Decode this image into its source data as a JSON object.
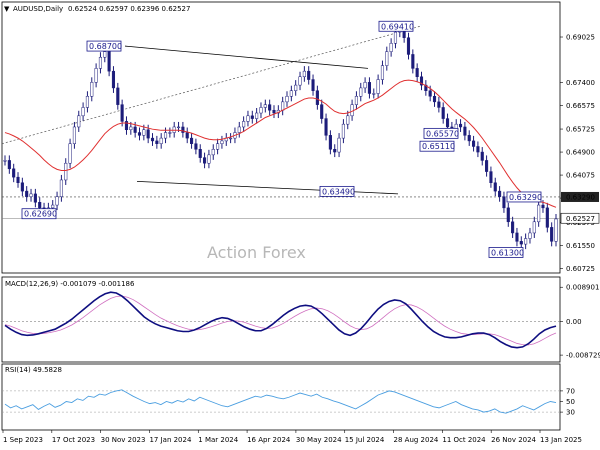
{
  "chart_data": {
    "type": "candlestick",
    "symbol_label": "AUDUSD,Daily",
    "ohlc_label": "0.62524 0.62597 0.62396 0.62527",
    "watermark": "Action Forex",
    "x_ticks": [
      "1 Sep 2023",
      "17 Oct 2023",
      "30 Nov 2023",
      "17 Jan 2024",
      "1 Mar 2024",
      "16 Apr 2024",
      "30 May 2024",
      "15 Jul 2024",
      "28 Aug 2024",
      "11 Oct 2024",
      "26 Nov 2024",
      "13 Jan 2025"
    ],
    "price": {
      "ylim": [
        0.606,
        0.6985
      ],
      "y_ticks": [
        "0.69025",
        "0.67400",
        "0.66575",
        "0.65725",
        "0.64900",
        "0.64075",
        "0.63250",
        "0.62375",
        "0.61550",
        "0.60725"
      ],
      "current_price": "0.62527",
      "level_price": "0.63290",
      "annotations": [
        "0.68700",
        "0.69410",
        "0.65570",
        "0.65110",
        "0.63490",
        "0.63290",
        "0.62690",
        "0.61300"
      ],
      "close": [
        0.646,
        0.643,
        0.64,
        0.638,
        0.635,
        0.633,
        0.634,
        0.631,
        0.629,
        0.628,
        0.629,
        0.63,
        0.633,
        0.639,
        0.645,
        0.652,
        0.658,
        0.662,
        0.665,
        0.669,
        0.674,
        0.679,
        0.683,
        0.685,
        0.678,
        0.672,
        0.666,
        0.66,
        0.657,
        0.658,
        0.656,
        0.655,
        0.657,
        0.654,
        0.653,
        0.652,
        0.654,
        0.656,
        0.656,
        0.658,
        0.658,
        0.656,
        0.654,
        0.652,
        0.65,
        0.647,
        0.645,
        0.648,
        0.65,
        0.652,
        0.653,
        0.654,
        0.654,
        0.656,
        0.658,
        0.66,
        0.662,
        0.661,
        0.663,
        0.665,
        0.666,
        0.664,
        0.663,
        0.664,
        0.667,
        0.669,
        0.671,
        0.673,
        0.676,
        0.678,
        0.675,
        0.671,
        0.666,
        0.661,
        0.655,
        0.65,
        0.649,
        0.654,
        0.659,
        0.662,
        0.666,
        0.669,
        0.672,
        0.674,
        0.67,
        0.67,
        0.675,
        0.68,
        0.685,
        0.688,
        0.692,
        0.693,
        0.69,
        0.684,
        0.679,
        0.676,
        0.673,
        0.671,
        0.669,
        0.667,
        0.665,
        0.661,
        0.658,
        0.656,
        0.659,
        0.658,
        0.655,
        0.653,
        0.651,
        0.649,
        0.646,
        0.642,
        0.638,
        0.635,
        0.633,
        0.629,
        0.624,
        0.62,
        0.617,
        0.616,
        0.618,
        0.62,
        0.624,
        0.63,
        0.629,
        0.622,
        0.617,
        0.625
      ],
      "ma": [
        0.656,
        0.6555,
        0.6548,
        0.654,
        0.653,
        0.6518,
        0.6505,
        0.6492,
        0.6478,
        0.6462,
        0.6448,
        0.6436,
        0.6428,
        0.6424,
        0.6424,
        0.6428,
        0.6436,
        0.6448,
        0.6462,
        0.6478,
        0.6496,
        0.6516,
        0.6536,
        0.6556,
        0.657,
        0.6582,
        0.659,
        0.6594,
        0.6594,
        0.6592,
        0.6588,
        0.6584,
        0.658,
        0.6576,
        0.6572,
        0.657,
        0.6568,
        0.6568,
        0.6568,
        0.6568,
        0.6568,
        0.6566,
        0.6562,
        0.6558,
        0.6552,
        0.6546,
        0.654,
        0.6536,
        0.6534,
        0.6534,
        0.6536,
        0.654,
        0.6544,
        0.655,
        0.6556,
        0.6564,
        0.6574,
        0.6584,
        0.6594,
        0.6604,
        0.6614,
        0.662,
        0.6626,
        0.6632,
        0.664,
        0.6648,
        0.6656,
        0.6664,
        0.6672,
        0.668,
        0.6684,
        0.6684,
        0.668,
        0.6672,
        0.6662,
        0.6648,
        0.6636,
        0.663,
        0.6628,
        0.663,
        0.6636,
        0.6644,
        0.6654,
        0.6664,
        0.667,
        0.6676,
        0.6684,
        0.6694,
        0.6706,
        0.6718,
        0.673,
        0.674,
        0.6746,
        0.6748,
        0.6746,
        0.6742,
        0.6736,
        0.6728,
        0.6718,
        0.6706,
        0.6692,
        0.6676,
        0.666,
        0.6645,
        0.6632,
        0.662,
        0.6608,
        0.6594,
        0.6578,
        0.656,
        0.654,
        0.6518,
        0.6496,
        0.6474,
        0.6452,
        0.6428,
        0.6404,
        0.6382,
        0.6362,
        0.6345,
        0.6332,
        0.6322,
        0.6315,
        0.6312,
        0.631,
        0.6305,
        0.6298,
        0.6292
      ],
      "high_trendline": [
        [
          0.687,
          0.679
        ]
      ],
      "low_trendline": [
        [
          0.638,
          0.634
        ]
      ],
      "rising_trendline": [
        0.652,
        0.6941
      ]
    },
    "macd": {
      "label": "MACD(12,26,9) -0.001079 -0.001186",
      "ylim": [
        -0.01,
        0.01
      ],
      "y_ticks": [
        "0.008901",
        "0.00",
        "-0.008729"
      ],
      "main": [
        -0.001,
        -0.002,
        -0.0028,
        -0.0034,
        -0.0036,
        -0.0035,
        -0.0032,
        -0.0028,
        -0.0024,
        -0.002,
        -0.0012,
        -0.0004,
        0.0006,
        0.0018,
        0.003,
        0.0042,
        0.0054,
        0.0064,
        0.0072,
        0.0076,
        0.0074,
        0.0066,
        0.0054,
        0.004,
        0.0026,
        0.0012,
        0.0002,
        -0.0006,
        -0.0012,
        -0.0016,
        -0.002,
        -0.0024,
        -0.0026,
        -0.0026,
        -0.0022,
        -0.0016,
        -0.0008,
        0.0,
        0.0006,
        0.001,
        0.0008,
        0.0002,
        -0.0006,
        -0.0014,
        -0.002,
        -0.0024,
        -0.0024,
        -0.0018,
        -0.0008,
        0.0004,
        0.0016,
        0.0026,
        0.0034,
        0.004,
        0.0042,
        0.004,
        0.0032,
        0.002,
        0.0006,
        -0.0008,
        -0.0022,
        -0.0032,
        -0.0036,
        -0.003,
        -0.0018,
        -0.0002,
        0.0016,
        0.0032,
        0.0044,
        0.0052,
        0.0056,
        0.0054,
        0.0046,
        0.0032,
        0.0016,
        0.0,
        -0.0014,
        -0.0026,
        -0.0034,
        -0.004,
        -0.0042,
        -0.0042,
        -0.004,
        -0.0036,
        -0.0032,
        -0.003,
        -0.003,
        -0.0034,
        -0.0042,
        -0.0052,
        -0.006,
        -0.0066,
        -0.0068,
        -0.0066,
        -0.0058,
        -0.0046,
        -0.0032,
        -0.0022,
        -0.0016,
        -0.0012
      ],
      "signal": [
        -0.0008,
        -0.0012,
        -0.0018,
        -0.0024,
        -0.0028,
        -0.0031,
        -0.0032,
        -0.0031,
        -0.0029,
        -0.0026,
        -0.0022,
        -0.0016,
        -0.0009,
        0.0,
        0.001,
        0.0021,
        0.0032,
        0.0043,
        0.0052,
        0.006,
        0.0065,
        0.0066,
        0.0063,
        0.0057,
        0.0048,
        0.0038,
        0.0028,
        0.0018,
        0.0009,
        0.0002,
        -0.0005,
        -0.0011,
        -0.0016,
        -0.002,
        -0.0022,
        -0.0021,
        -0.0018,
        -0.0014,
        -0.0009,
        -0.0004,
        0.0,
        0.0002,
        0.0001,
        -0.0002,
        -0.0007,
        -0.0012,
        -0.0016,
        -0.0018,
        -0.0017,
        -0.0012,
        -0.0005,
        0.0004,
        0.0013,
        0.0021,
        0.0028,
        0.0033,
        0.0035,
        0.0033,
        0.0028,
        0.002,
        0.001,
        -0.0001,
        -0.0011,
        -0.0018,
        -0.0021,
        -0.0019,
        -0.0012,
        -0.0001,
        0.0011,
        0.0023,
        0.0033,
        0.004,
        0.0044,
        0.0043,
        0.0038,
        0.003,
        0.002,
        0.0009,
        -0.0002,
        -0.0012,
        -0.002,
        -0.0026,
        -0.0031,
        -0.0033,
        -0.0034,
        -0.0033,
        -0.0032,
        -0.0032,
        -0.0034,
        -0.0039,
        -0.0045,
        -0.0051,
        -0.0057,
        -0.006,
        -0.0061,
        -0.0058,
        -0.0052,
        -0.0044,
        -0.0036,
        -0.003
      ]
    },
    "rsi": {
      "label": "RSI(14) 49.5828",
      "ylim": [
        0,
        100
      ],
      "y_ticks": [
        "70",
        "50",
        "30"
      ],
      "values": [
        45,
        38,
        42,
        36,
        40,
        44,
        35,
        41,
        46,
        39,
        43,
        50,
        48,
        55,
        52,
        60,
        58,
        64,
        62,
        67,
        70,
        72,
        66,
        60,
        55,
        50,
        46,
        48,
        44,
        50,
        47,
        52,
        49,
        55,
        51,
        58,
        54,
        50,
        46,
        42,
        40,
        44,
        48,
        52,
        56,
        60,
        58,
        62,
        60,
        57,
        55,
        58,
        62,
        66,
        63,
        60,
        64,
        58,
        55,
        51,
        48,
        44,
        40,
        36,
        42,
        48,
        55,
        62,
        66,
        70,
        68,
        64,
        60,
        56,
        52,
        48,
        44,
        40,
        38,
        42,
        46,
        50,
        44,
        40,
        36,
        34,
        30,
        32,
        36,
        30,
        28,
        32,
        36,
        42,
        38,
        34,
        40,
        46,
        50,
        48
      ]
    }
  }
}
